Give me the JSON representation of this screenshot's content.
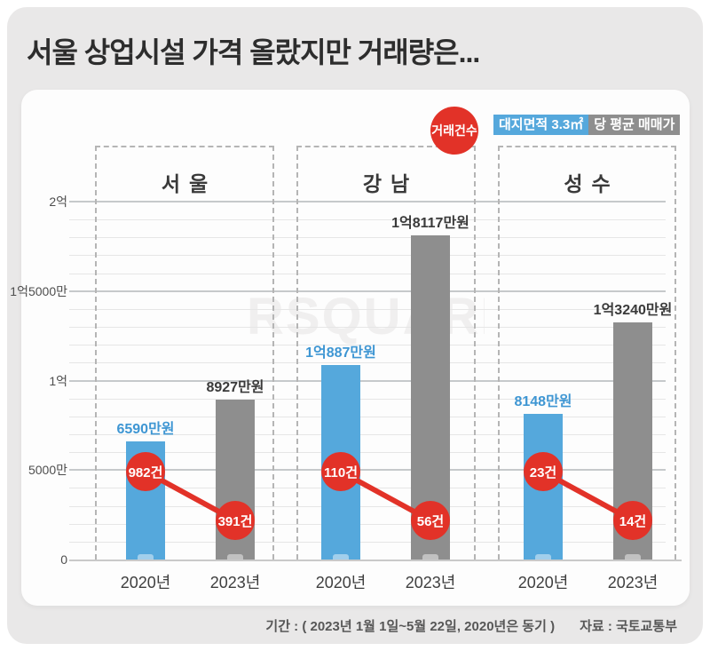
{
  "title": "서울 상업시설 가격 올랐지만 거래량은...",
  "legend": {
    "count_label": "거래건수",
    "price_highlight": "대지면적 3.3㎡",
    "price_rest": "당 평균 매매가"
  },
  "watermark": "RSQUARE",
  "footer": {
    "period": "기간 : ( 2023년 1월 1일~5월 22일, 2020년은 동기 )",
    "source": "자료 : 국토교통부"
  },
  "colors": {
    "blue": "#55a8dc",
    "blue_text": "#3e96d3",
    "gray": "#8e8e8e",
    "dark_text": "#3a3a3a",
    "red": "#e23228"
  },
  "chart_data": {
    "type": "bar",
    "title": "서울 상업시설 가격 올랐지만 거래량은...",
    "unit": "만원 (대지면적 3.3㎡당 평균 매매가)",
    "categories": [
      "서울",
      "강남",
      "성수"
    ],
    "y_axis": {
      "max": 20000,
      "minor_step": 1000,
      "major_step": 5000,
      "ticks": [
        {
          "label": "0",
          "value": 0
        },
        {
          "label": "5000만",
          "value": 5000
        },
        {
          "label": "1억",
          "value": 10000
        },
        {
          "label": "1억5000만",
          "value": 15000
        },
        {
          "label": "2억",
          "value": 20000
        }
      ]
    },
    "groups": [
      {
        "name": "서울",
        "bars": [
          {
            "year": "2020년",
            "price": 6590,
            "price_label": "6590만원",
            "count": 982,
            "count_label": "982건"
          },
          {
            "year": "2023년",
            "price": 8927,
            "price_label": "8927만원",
            "count": 391,
            "count_label": "391건"
          }
        ]
      },
      {
        "name": "강남",
        "bars": [
          {
            "year": "2020년",
            "price": 10887,
            "price_label": "1억887만원",
            "count": 110,
            "count_label": "110건"
          },
          {
            "year": "2023년",
            "price": 18117,
            "price_label": "1억8117만원",
            "count": 56,
            "count_label": "56건"
          }
        ]
      },
      {
        "name": "성수",
        "bars": [
          {
            "year": "2020년",
            "price": 8148,
            "price_label": "8148만원",
            "count": 23,
            "count_label": "23건"
          },
          {
            "year": "2023년",
            "price": 13240,
            "price_label": "1억3240만원",
            "count": 14,
            "count_label": "14건"
          }
        ]
      }
    ]
  }
}
